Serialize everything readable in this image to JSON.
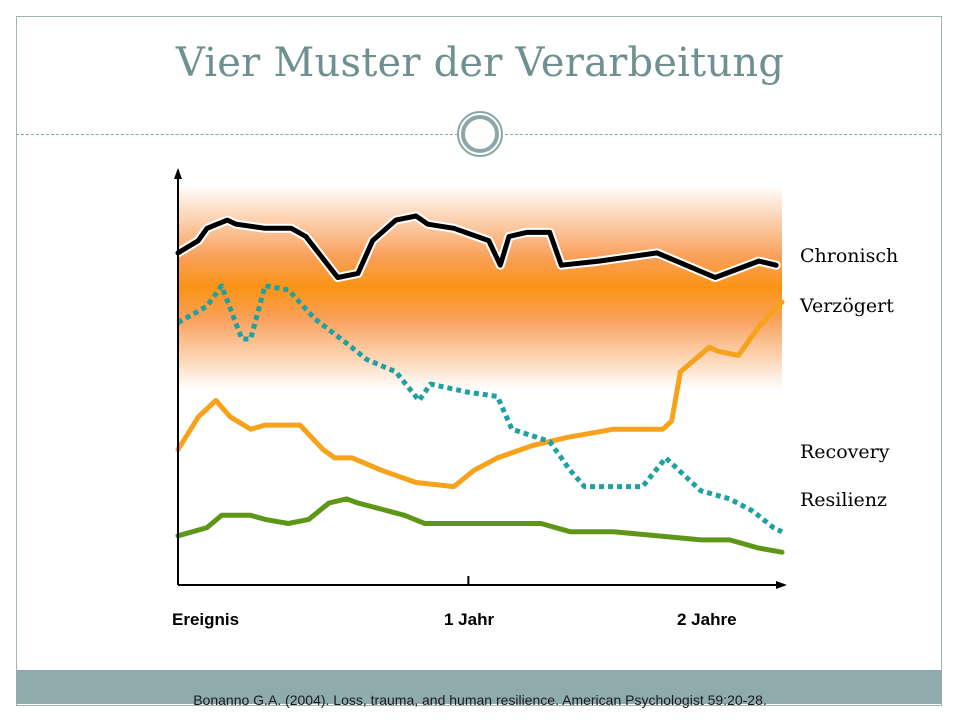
{
  "title": "Vier Muster der Verarbeitung",
  "citation": "Bonanno G.A. (2004). Loss, trauma, and human resilience. American Psychologist 59:20-28.",
  "chart_data": {
    "type": "line",
    "x_tick_labels": [
      "Ereignis",
      "1 Jahr",
      "2 Jahre"
    ],
    "x_ticks": [
      0,
      1,
      2
    ],
    "xlim": [
      0,
      2.08
    ],
    "ylim": [
      0,
      100
    ],
    "series": [
      {
        "name": "Chronisch",
        "color": "#000000",
        "style": "solid",
        "outline": "#ffffff",
        "points": [
          [
            0.0,
            81
          ],
          [
            0.07,
            84
          ],
          [
            0.1,
            87
          ],
          [
            0.17,
            89
          ],
          [
            0.2,
            88
          ],
          [
            0.3,
            87
          ],
          [
            0.39,
            87
          ],
          [
            0.44,
            85
          ],
          [
            0.55,
            75
          ],
          [
            0.62,
            76
          ],
          [
            0.67,
            84
          ],
          [
            0.75,
            89
          ],
          [
            0.82,
            90
          ],
          [
            0.86,
            88
          ],
          [
            0.95,
            87
          ],
          [
            1.07,
            84
          ],
          [
            1.11,
            78
          ],
          [
            1.14,
            85
          ],
          [
            1.2,
            86
          ],
          [
            1.28,
            86
          ],
          [
            1.32,
            78
          ],
          [
            1.45,
            79
          ],
          [
            1.65,
            81
          ],
          [
            1.85,
            75
          ],
          [
            2.0,
            79
          ],
          [
            2.06,
            78
          ]
        ]
      },
      {
        "name": "Verzögert",
        "color": "#f7a21b",
        "style": "solid",
        "points": [
          [
            0.0,
            33
          ],
          [
            0.07,
            41
          ],
          [
            0.13,
            45
          ],
          [
            0.18,
            41
          ],
          [
            0.25,
            38
          ],
          [
            0.3,
            39
          ],
          [
            0.42,
            39
          ],
          [
            0.5,
            33
          ],
          [
            0.54,
            31
          ],
          [
            0.6,
            31
          ],
          [
            0.7,
            28
          ],
          [
            0.82,
            25
          ],
          [
            0.95,
            24
          ],
          [
            1.02,
            28
          ],
          [
            1.1,
            31
          ],
          [
            1.22,
            34
          ],
          [
            1.34,
            36
          ],
          [
            1.5,
            38
          ],
          [
            1.67,
            38
          ],
          [
            1.7,
            40
          ],
          [
            1.73,
            52
          ],
          [
            1.83,
            58
          ],
          [
            1.86,
            57
          ],
          [
            1.93,
            56
          ],
          [
            2.0,
            63
          ],
          [
            2.08,
            69
          ]
        ]
      },
      {
        "name": "Recovery",
        "color": "#20a0a0",
        "style": "dotted",
        "points": [
          [
            0.0,
            64
          ],
          [
            0.1,
            68
          ],
          [
            0.15,
            73
          ],
          [
            0.22,
            60
          ],
          [
            0.25,
            60
          ],
          [
            0.3,
            73
          ],
          [
            0.38,
            72
          ],
          [
            0.47,
            65
          ],
          [
            0.58,
            59
          ],
          [
            0.65,
            55
          ],
          [
            0.75,
            52
          ],
          [
            0.83,
            45
          ],
          [
            0.87,
            49
          ],
          [
            1.0,
            47
          ],
          [
            1.1,
            46
          ],
          [
            1.15,
            38
          ],
          [
            1.28,
            35
          ],
          [
            1.35,
            28
          ],
          [
            1.4,
            24
          ],
          [
            1.6,
            24
          ],
          [
            1.68,
            31
          ],
          [
            1.8,
            23
          ],
          [
            1.9,
            21
          ],
          [
            1.98,
            18
          ],
          [
            2.05,
            14
          ],
          [
            2.08,
            13
          ]
        ]
      },
      {
        "name": "Resilienz",
        "color": "#5e9618",
        "style": "solid",
        "points": [
          [
            0.0,
            12
          ],
          [
            0.1,
            14
          ],
          [
            0.15,
            17
          ],
          [
            0.25,
            17
          ],
          [
            0.3,
            16
          ],
          [
            0.38,
            15
          ],
          [
            0.45,
            16
          ],
          [
            0.52,
            20
          ],
          [
            0.58,
            21
          ],
          [
            0.62,
            20
          ],
          [
            0.78,
            17
          ],
          [
            0.85,
            15
          ],
          [
            0.95,
            15
          ],
          [
            1.1,
            15
          ],
          [
            1.25,
            15
          ],
          [
            1.35,
            13
          ],
          [
            1.5,
            13
          ],
          [
            1.65,
            12
          ],
          [
            1.8,
            11
          ],
          [
            1.9,
            11
          ],
          [
            2.0,
            9
          ],
          [
            2.08,
            8
          ]
        ]
      }
    ]
  }
}
